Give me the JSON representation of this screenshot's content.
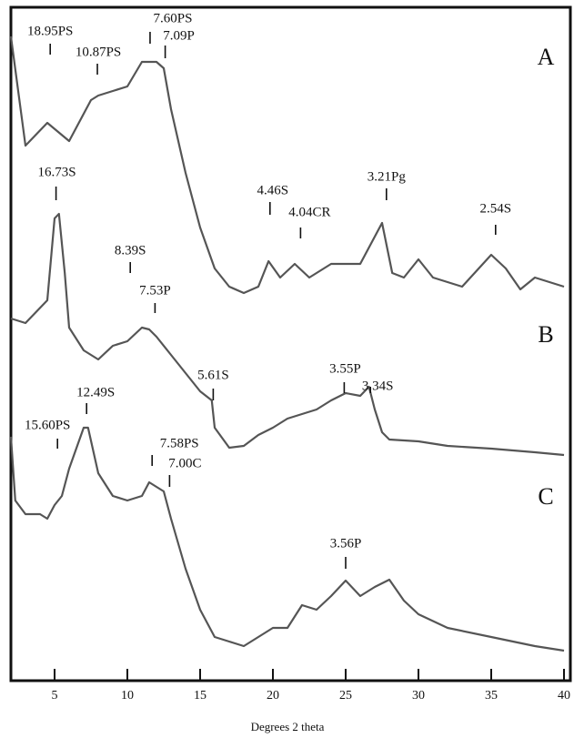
{
  "chart_data": {
    "type": "line",
    "xlabel": "Degrees 2 theta",
    "xlim": [
      2,
      40.4
    ],
    "xticks": [
      5,
      10,
      15,
      20,
      25,
      30,
      35,
      40
    ],
    "ylim": [
      0,
      740
    ],
    "series": [
      {
        "name": "A",
        "color": "#555555",
        "x": [
          2,
          3,
          4.5,
          6,
          7.5,
          8,
          9,
          10,
          11,
          12,
          12.5,
          13,
          14,
          15,
          16,
          17,
          18,
          19,
          19.7,
          20.5,
          21.5,
          22.5,
          24,
          26,
          27.5,
          28.2,
          29,
          30,
          31,
          33,
          35,
          36,
          37,
          38,
          40
        ],
        "values": [
          708,
          588,
          613,
          593,
          638,
          643,
          648,
          653,
          680,
          680,
          673,
          628,
          558,
          498,
          453,
          433,
          426,
          433,
          461,
          443,
          458,
          443,
          458,
          458,
          503,
          448,
          443,
          463,
          443,
          433,
          468,
          453,
          430,
          443,
          433
        ]
      },
      {
        "name": "B",
        "color": "#555555",
        "x": [
          2,
          3,
          4.5,
          5,
          5.3,
          5.7,
          6,
          7,
          8,
          9,
          10,
          11,
          11.5,
          12,
          13,
          14,
          15,
          15.8,
          16,
          17,
          18,
          19,
          20,
          21,
          22,
          23,
          24,
          25,
          26,
          26.6,
          27,
          27.5,
          28,
          30,
          32,
          35,
          38,
          40
        ],
        "values": [
          398,
          393,
          418,
          508,
          513,
          448,
          388,
          363,
          353,
          368,
          373,
          388,
          386,
          378,
          358,
          338,
          318,
          308,
          278,
          256,
          258,
          270,
          278,
          288,
          293,
          298,
          308,
          316,
          313,
          323,
          298,
          273,
          265,
          263,
          258,
          255,
          251,
          248
        ]
      },
      {
        "name": "C",
        "color": "#555555",
        "x": [
          2,
          2.3,
          3,
          4,
          4.5,
          5,
          5.5,
          6,
          7,
          7.3,
          8,
          9,
          10,
          11,
          11.5,
          12,
          12.5,
          13,
          14,
          15,
          16,
          17,
          18,
          19,
          20,
          21,
          22,
          23,
          24,
          25,
          26,
          27,
          28,
          29,
          30,
          32,
          35,
          38,
          40
        ],
        "values": [
          268,
          198,
          183,
          183,
          178,
          193,
          203,
          233,
          278,
          278,
          228,
          203,
          198,
          203,
          218,
          213,
          208,
          178,
          123,
          78,
          48,
          43,
          38,
          48,
          58,
          58,
          83,
          78,
          93,
          110,
          93,
          103,
          111,
          88,
          73,
          58,
          48,
          38,
          33
        ]
      }
    ],
    "annotations": [
      {
        "text": "18.95PS",
        "x": 4.7
      },
      {
        "text": "10.87PS",
        "x": 7.94
      },
      {
        "text": "7.60PS",
        "x": 11.56
      },
      {
        "text": "7.09P",
        "x": 12.6
      },
      {
        "text": "4.46S",
        "x": 19.8
      },
      {
        "text": "4.04CR",
        "x": 21.9
      },
      {
        "text": "3.21Pg",
        "x": 27.8
      },
      {
        "text": "2.54S",
        "x": 35.3
      },
      {
        "text": "16.73S",
        "x": 5.1
      },
      {
        "text": "8.39S",
        "x": 10.2
      },
      {
        "text": "7.53P",
        "x": 11.9
      },
      {
        "text": "5.61S",
        "x": 15.9
      },
      {
        "text": "3.55P",
        "x": 24.9
      },
      {
        "text": "3.34S",
        "x": 26.7
      },
      {
        "text": "15.60PS",
        "x": 5.2
      },
      {
        "text": "12.49S",
        "x": 7.2
      },
      {
        "text": "7.58PS",
        "x": 11.7
      },
      {
        "text": "7.00C",
        "x": 12.9
      },
      {
        "text": "3.56P",
        "x": 25
      }
    ]
  }
}
